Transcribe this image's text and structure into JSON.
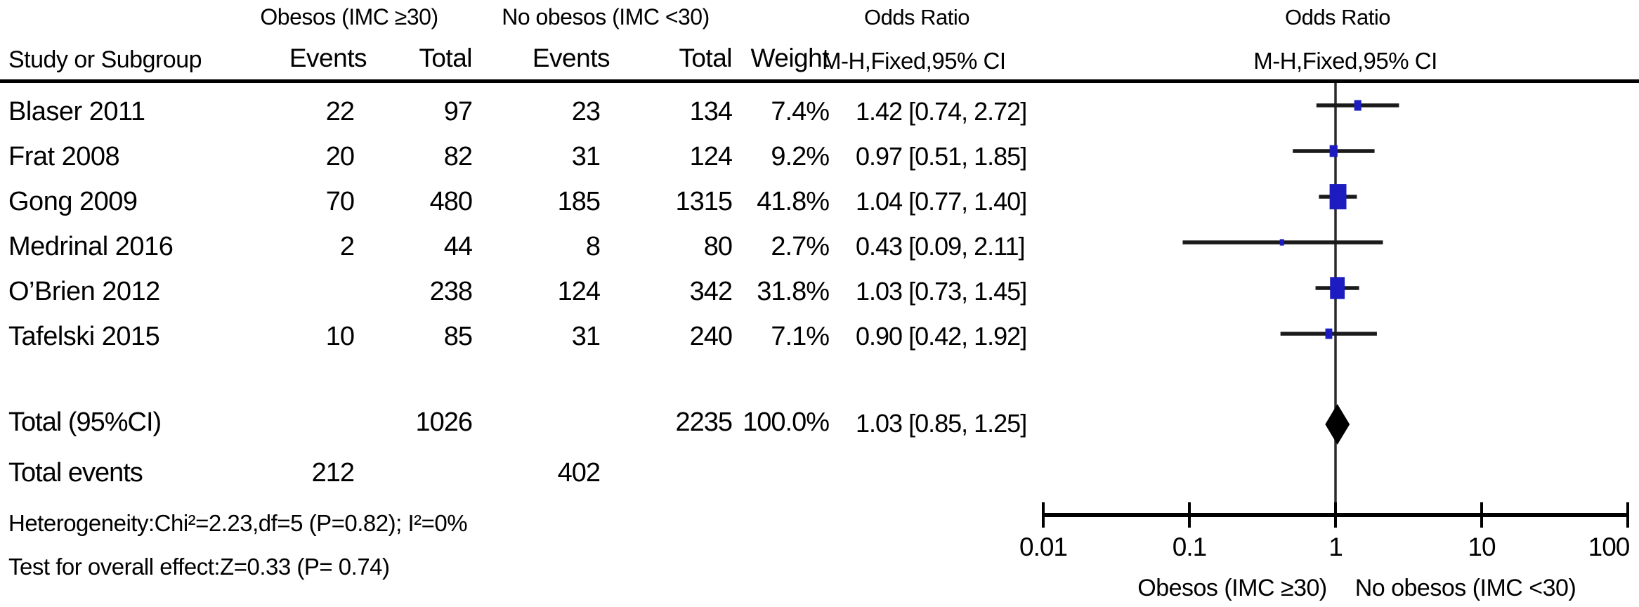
{
  "chart_data": {
    "type": "forest_plot",
    "effect_measure": "Odds Ratio",
    "model": "Mantel-Haenszel Fixed, 95% CI",
    "header": {
      "group1": "Obesos (IMC ≥30)",
      "group2": "No obesos (IMC <30)",
      "odds_ratio": "Odds Ratio",
      "odds_ratio_plot": "Odds Ratio",
      "study": "Study or Subgroup",
      "events1": "Events",
      "total1": "Total",
      "events2": "Events",
      "total2": "Total",
      "weight": "Weight",
      "mh_fixed": "M-H,Fixed,95% CI",
      "mh_fixed_plot": "M-H,Fixed,95% CI"
    },
    "studies": [
      {
        "name": "Blaser 2011",
        "events1": "22",
        "total1": "97",
        "events2": "23",
        "total2": "134",
        "weight": "7.4%",
        "weight_value": 7.4,
        "or": 1.42,
        "ci_low": 0.74,
        "ci_high": 2.72,
        "ci_text": "1.42 [0.74, 2.72]"
      },
      {
        "name": "Frat 2008",
        "events1": "20",
        "total1": "82",
        "events2": "31",
        "total2": "124",
        "weight": "9.2%",
        "weight_value": 9.2,
        "or": 0.97,
        "ci_low": 0.51,
        "ci_high": 1.85,
        "ci_text": "0.97 [0.51, 1.85]"
      },
      {
        "name": "Gong 2009",
        "events1": "70",
        "total1": "480",
        "events2": "185",
        "total2": "1315",
        "weight": "41.8%",
        "weight_value": 41.8,
        "or": 1.04,
        "ci_low": 0.77,
        "ci_high": 1.4,
        "ci_text": "1.04 [0.77, 1.40]"
      },
      {
        "name": "Medrinal 2016",
        "events1": "2",
        "total1": "44",
        "events2": "8",
        "total2": "80",
        "weight": "2.7%",
        "weight_value": 2.7,
        "or": 0.43,
        "ci_low": 0.09,
        "ci_high": 2.11,
        "ci_text": "0.43 [0.09, 2.11]"
      },
      {
        "name": "O’Brien 2012",
        "events1": "",
        "total1": "238",
        "events2": "124",
        "total2": "342",
        "weight": "31.8%",
        "weight_value": 31.8,
        "or": 1.03,
        "ci_low": 0.73,
        "ci_high": 1.45,
        "ci_text": "1.03 [0.73, 1.45]"
      },
      {
        "name": "Tafelski 2015",
        "events1": "10",
        "total1": "85",
        "events2": "31",
        "total2": "240",
        "weight": "7.1%",
        "weight_value": 7.1,
        "or": 0.9,
        "ci_low": 0.42,
        "ci_high": 1.92,
        "ci_text": "0.90 [0.42, 1.92]"
      }
    ],
    "total_row": {
      "label": "Total (95%CI)",
      "total1": "1026",
      "total2": "2235",
      "weight": "100.0%",
      "or": 1.03,
      "ci_low": 0.85,
      "ci_high": 1.25,
      "ci_text": "1.03 [0.85, 1.25]"
    },
    "total_events_row": {
      "label": "Total events",
      "events1": "212",
      "events2": "402"
    },
    "footnotes": {
      "heterogeneity": "Heterogeneity:Chi²=2.23,df=5 (P=0.82); I²=0%",
      "overall_effect": "Test for overall effect:Z=0.33 (P= 0.74)"
    },
    "axis": {
      "scale": "log",
      "xlim": [
        0.01,
        100
      ],
      "tick_values": [
        0.01,
        0.1,
        1,
        10,
        100
      ],
      "tick_labels": [
        "0.01",
        "0.1",
        "1",
        "10",
        "100"
      ],
      "label_left": "Obesos (IMC ≥30)",
      "label_right": "No obesos (IMC <30)"
    },
    "colors": {
      "marker": "#1c1cc0",
      "diamond": "#000000",
      "line": "#1a1a1a",
      "axis": "#000000"
    }
  }
}
